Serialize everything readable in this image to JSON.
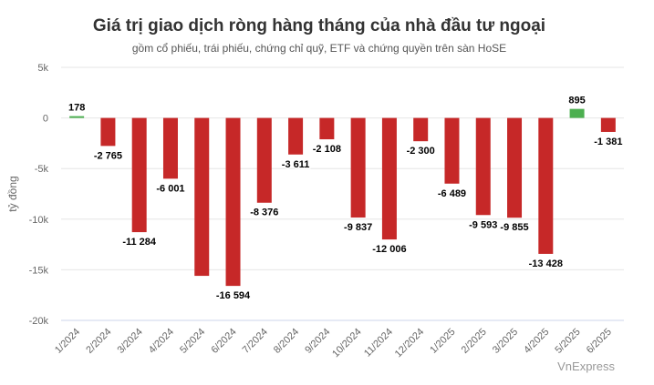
{
  "title": "Giá trị giao dịch ròng hàng tháng của nhà đầu tư ngoại",
  "subtitle": "gồm cổ phiếu, trái phiếu, chứng chỉ quỹ, ETF và chứng quyền trên sàn HoSE",
  "source": "VnExpress",
  "colors": {
    "positive": "#4caf50",
    "negative": "#c62828",
    "grid": "#e6e6e6",
    "axis": "#ccd6eb"
  },
  "chart_data": {
    "type": "bar",
    "title": "Giá trị giao dịch ròng hàng tháng của nhà đầu tư ngoại",
    "subtitle": "gồm cổ phiếu, trái phiếu, chứng chỉ quỹ, ETF và chứng quyền trên sàn HoSE",
    "xlabel": "",
    "ylabel": "tỷ đồng",
    "ylim": [
      -20000,
      5000
    ],
    "yticks": [
      5000,
      0,
      -5000,
      -10000,
      -15000,
      -20000
    ],
    "ytick_labels": [
      "5k",
      "0",
      "-5k",
      "-10k",
      "-15k",
      "-20k"
    ],
    "grid": true,
    "categories": [
      "1/2024",
      "2/2024",
      "3/2024",
      "4/2024",
      "5/2024",
      "6/2024",
      "7/2024",
      "8/2024",
      "9/2024",
      "10/2024",
      "11/2024",
      "12/2024",
      "1/2025",
      "2/2025",
      "3/2025",
      "4/2025",
      "5/2025",
      "6/2025"
    ],
    "values": [
      178,
      -2765,
      -11284,
      -6001,
      -15600,
      -16594,
      -8376,
      -3611,
      -2108,
      -9837,
      -12006,
      -2300,
      -6489,
      -9593,
      -9855,
      -13428,
      895,
      -1381
    ],
    "data_labels": [
      "178",
      "-2 765",
      "-11 284",
      "-6 001",
      "",
      "-16 594",
      "-8 376",
      "-3 611",
      "-2 108",
      "-9 837",
      "-12 006",
      "-2 300",
      "-6 489",
      "-9 593",
      "-9 855",
      "-13 428",
      "895",
      "-1 381"
    ]
  }
}
